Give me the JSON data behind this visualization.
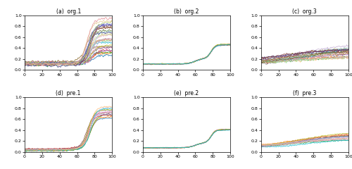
{
  "n_points": 101,
  "x_max": 100,
  "titles": [
    "(a)  org.1",
    "(b)  org.2",
    "(c)  org.3",
    "(d)  pre.1",
    "(e)  pre.2",
    "(f)  pre.3"
  ],
  "ylim": [
    0.0,
    1.0
  ],
  "xlim": [
    0,
    100
  ],
  "xticks": [
    0,
    20,
    40,
    60,
    80,
    100
  ],
  "yticks": [
    0.0,
    0.2,
    0.4,
    0.6,
    0.8,
    1.0
  ],
  "figure_facecolor": "#ffffff",
  "linewidth": 0.6,
  "alpha": 0.9,
  "tab_colors": [
    "#1f77b4",
    "#ff7f0e",
    "#2ca02c",
    "#d62728",
    "#9467bd",
    "#8c564b",
    "#e377c2",
    "#7f7f7f",
    "#bcbd22",
    "#17becf",
    "#aec7e8",
    "#ffbb78",
    "#98df8a",
    "#ff9896",
    "#c5b0d5",
    "#c49c94",
    "#f7b6d2",
    "#c7c7c7",
    "#dbdb8d",
    "#9edae5",
    "#393b79",
    "#637939",
    "#8c6d31",
    "#843c39",
    "#7b4173",
    "#5254a3",
    "#6b6ecf",
    "#b5cf6b",
    "#e7cb94",
    "#e7969c"
  ]
}
